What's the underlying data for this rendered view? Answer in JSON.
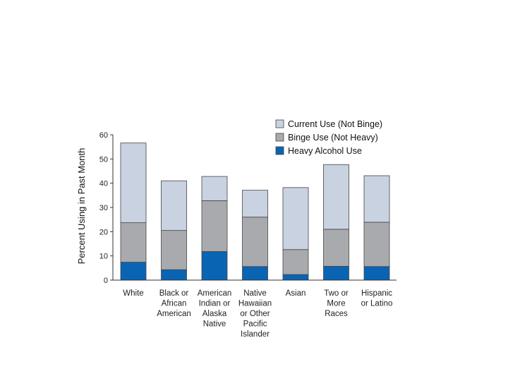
{
  "chart_data": {
    "type": "bar",
    "stacked": true,
    "title": "",
    "xlabel": "",
    "ylabel": "Percent Using in Past Month",
    "ylim": [
      0,
      60
    ],
    "yticks": [
      "0",
      "10",
      "20",
      "30",
      "40",
      "50",
      "60"
    ],
    "grid": false,
    "legend_position": "top-right",
    "categories": [
      [
        "White"
      ],
      [
        "Black or",
        "African",
        "American"
      ],
      [
        "American",
        "Indian or",
        "Alaska",
        "Native"
      ],
      [
        "Native",
        "Hawaiian",
        "or Other",
        "Pacific",
        "Islander"
      ],
      [
        "Asian"
      ],
      [
        "Two or",
        "More",
        "Races"
      ],
      [
        "Hispanic",
        "or Latino"
      ]
    ],
    "series": [
      {
        "name": "Heavy Alcohol Use",
        "color": "#0a64b4",
        "values": [
          7.4,
          4.3,
          11.8,
          5.6,
          2.3,
          5.7,
          5.6
        ]
      },
      {
        "name": "Binge Use (Not Heavy)",
        "color": "#a8aaad",
        "values": [
          16.3,
          16.2,
          21.0,
          20.4,
          10.3,
          15.3,
          18.3
        ]
      },
      {
        "name": "Current Use (Not Binge)",
        "color": "#c9d2e0",
        "values": [
          32.9,
          20.5,
          10.0,
          11.1,
          25.6,
          26.7,
          19.2
        ]
      }
    ],
    "legend": [
      "Current Use (Not Binge)",
      "Binge Use (Not Heavy)",
      "Heavy Alcohol Use"
    ]
  }
}
